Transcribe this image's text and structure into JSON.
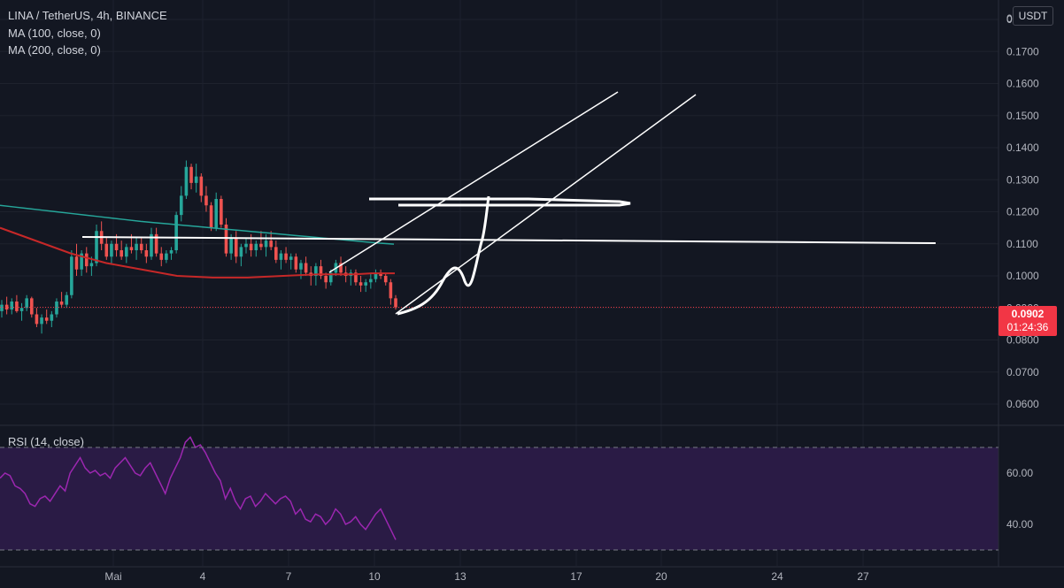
{
  "header": {
    "symbol_line": "LINA / TetherUS, 4h, BINANCE",
    "ma1_label": "MA (100, close, 0)",
    "ma2_label": "MA (200, close, 0)",
    "currency_button": "USDT"
  },
  "rsi": {
    "label": "RSI (14, close)"
  },
  "price_badge": {
    "price": "0.0902",
    "countdown": "01:24:36"
  },
  "colors": {
    "background": "#131722",
    "up": "#26a69a",
    "down": "#ef5350",
    "ma100": "#c62828",
    "ma200": "#26a69a",
    "rsi_line": "#9c27b0",
    "rsi_band": "#2a1b45",
    "drawing": "#ffffff",
    "badge": "#f23645"
  },
  "chart_data": [
    {
      "type": "candlestick",
      "title": "LINA / TetherUS, 4h, BINANCE",
      "ylim": [
        0.053,
        0.2
      ],
      "y_ticks": [
        "0.0600",
        "0.0700",
        "0.0800",
        "0.0900",
        "0.1000",
        "0.1100",
        "0.1200",
        "0.1300",
        "0.1400",
        "0.1500",
        "0.1600",
        "0.1700",
        "0.1800"
      ],
      "x_ticks": [
        "Mai",
        "4",
        "7",
        "10",
        "13",
        "17",
        "20",
        "24",
        "27"
      ],
      "last_price": 0.0902,
      "ohlc": [
        [
          0.089,
          0.0925,
          0.087,
          0.091
        ],
        [
          0.091,
          0.0935,
          0.088,
          0.0895
        ],
        [
          0.0895,
          0.093,
          0.088,
          0.092
        ],
        [
          0.092,
          0.094,
          0.0885,
          0.089
        ],
        [
          0.089,
          0.0915,
          0.086,
          0.09
        ],
        [
          0.09,
          0.094,
          0.089,
          0.093
        ],
        [
          0.093,
          0.0935,
          0.087,
          0.088
        ],
        [
          0.088,
          0.09,
          0.084,
          0.085
        ],
        [
          0.085,
          0.088,
          0.082,
          0.087
        ],
        [
          0.087,
          0.0895,
          0.085,
          0.086
        ],
        [
          0.086,
          0.089,
          0.084,
          0.088
        ],
        [
          0.088,
          0.093,
          0.087,
          0.092
        ],
        [
          0.092,
          0.095,
          0.09,
          0.091
        ],
        [
          0.091,
          0.095,
          0.09,
          0.094
        ],
        [
          0.094,
          0.108,
          0.093,
          0.106
        ],
        [
          0.106,
          0.11,
          0.1,
          0.102
        ],
        [
          0.102,
          0.108,
          0.1,
          0.107
        ],
        [
          0.107,
          0.109,
          0.101,
          0.103
        ],
        [
          0.103,
          0.106,
          0.1,
          0.104
        ],
        [
          0.104,
          0.116,
          0.103,
          0.114
        ],
        [
          0.114,
          0.117,
          0.108,
          0.11
        ],
        [
          0.11,
          0.112,
          0.105,
          0.106
        ],
        [
          0.106,
          0.111,
          0.104,
          0.11
        ],
        [
          0.11,
          0.113,
          0.106,
          0.108
        ],
        [
          0.108,
          0.111,
          0.105,
          0.106
        ],
        [
          0.106,
          0.11,
          0.104,
          0.109
        ],
        [
          0.109,
          0.113,
          0.107,
          0.108
        ],
        [
          0.108,
          0.112,
          0.105,
          0.11
        ],
        [
          0.11,
          0.112,
          0.107,
          0.108
        ],
        [
          0.108,
          0.11,
          0.104,
          0.106
        ],
        [
          0.106,
          0.115,
          0.105,
          0.113
        ],
        [
          0.113,
          0.115,
          0.106,
          0.107
        ],
        [
          0.107,
          0.109,
          0.103,
          0.105
        ],
        [
          0.105,
          0.108,
          0.104,
          0.107
        ],
        [
          0.107,
          0.109,
          0.105,
          0.108
        ],
        [
          0.108,
          0.12,
          0.107,
          0.119
        ],
        [
          0.119,
          0.128,
          0.117,
          0.125
        ],
        [
          0.125,
          0.136,
          0.124,
          0.134
        ],
        [
          0.134,
          0.135,
          0.127,
          0.129
        ],
        [
          0.129,
          0.135,
          0.126,
          0.131
        ],
        [
          0.131,
          0.132,
          0.123,
          0.125
        ],
        [
          0.125,
          0.128,
          0.12,
          0.122
        ],
        [
          0.122,
          0.123,
          0.114,
          0.115
        ],
        [
          0.115,
          0.126,
          0.114,
          0.124
        ],
        [
          0.124,
          0.125,
          0.115,
          0.116
        ],
        [
          0.116,
          0.118,
          0.106,
          0.107
        ],
        [
          0.107,
          0.113,
          0.105,
          0.112
        ],
        [
          0.112,
          0.114,
          0.104,
          0.106
        ],
        [
          0.106,
          0.11,
          0.103,
          0.109
        ],
        [
          0.109,
          0.112,
          0.107,
          0.11
        ],
        [
          0.11,
          0.113,
          0.106,
          0.108
        ],
        [
          0.108,
          0.111,
          0.106,
          0.11
        ],
        [
          0.11,
          0.114,
          0.108,
          0.109
        ],
        [
          0.109,
          0.113,
          0.106,
          0.111
        ],
        [
          0.111,
          0.114,
          0.108,
          0.109
        ],
        [
          0.109,
          0.111,
          0.104,
          0.105
        ],
        [
          0.105,
          0.108,
          0.102,
          0.107
        ],
        [
          0.107,
          0.109,
          0.104,
          0.105
        ],
        [
          0.105,
          0.107,
          0.102,
          0.106
        ],
        [
          0.106,
          0.107,
          0.101,
          0.102
        ],
        [
          0.102,
          0.105,
          0.099,
          0.104
        ],
        [
          0.104,
          0.106,
          0.1,
          0.101
        ],
        [
          0.101,
          0.103,
          0.097,
          0.1
        ],
        [
          0.1,
          0.104,
          0.097,
          0.103
        ],
        [
          0.103,
          0.105,
          0.099,
          0.1
        ],
        [
          0.1,
          0.101,
          0.096,
          0.098
        ],
        [
          0.098,
          0.102,
          0.097,
          0.101
        ],
        [
          0.101,
          0.105,
          0.1,
          0.104
        ],
        [
          0.104,
          0.106,
          0.1,
          0.101
        ],
        [
          0.101,
          0.103,
          0.098,
          0.1
        ],
        [
          0.1,
          0.102,
          0.097,
          0.101
        ],
        [
          0.101,
          0.102,
          0.097,
          0.098
        ],
        [
          0.098,
          0.1,
          0.095,
          0.097
        ],
        [
          0.097,
          0.099,
          0.095,
          0.098
        ],
        [
          0.098,
          0.101,
          0.096,
          0.099
        ],
        [
          0.099,
          0.102,
          0.098,
          0.101
        ],
        [
          0.101,
          0.102,
          0.099,
          0.1
        ],
        [
          0.1,
          0.101,
          0.097,
          0.098
        ],
        [
          0.098,
          0.099,
          0.091,
          0.093
        ],
        [
          0.093,
          0.094,
          0.0895,
          0.0902
        ]
      ],
      "ma100": [
        0.099,
        0.0985,
        0.0978,
        0.097,
        0.0962,
        0.0955,
        0.0948,
        0.094,
        0.0933,
        0.0925,
        0.0918,
        0.091,
        0.0903,
        0.0897,
        0.089,
        0.0885,
        0.088,
        0.0875,
        0.087,
        0.0865
      ],
      "ma200": [
        0.122,
        0.1215,
        0.121,
        0.1205,
        0.12,
        0.1195,
        0.119,
        0.1185,
        0.118,
        0.1175,
        0.117,
        0.1166,
        0.1162,
        0.1158,
        0.1154,
        0.115,
        0.1146,
        0.1142,
        0.1138,
        0.1134,
        0.113,
        0.1126,
        0.1122,
        0.1118,
        0.1114,
        0.111,
        0.1106,
        0.1102,
        0.1099
      ]
    },
    {
      "type": "line",
      "title": "RSI (14, close)",
      "ylim": [
        20,
        80
      ],
      "y_ticks": [
        "40.00",
        "60.00"
      ],
      "bands": [
        30,
        70
      ],
      "values": [
        58,
        60,
        59,
        55,
        54,
        52,
        48,
        47,
        50,
        51,
        49,
        52,
        55,
        53,
        60,
        63,
        66,
        62,
        60,
        61,
        59,
        60,
        58,
        62,
        64,
        66,
        63,
        60,
        59,
        62,
        64,
        60,
        56,
        52,
        58,
        62,
        66,
        72,
        74,
        70,
        71,
        68,
        64,
        60,
        57,
        50,
        54,
        49,
        46,
        50,
        51,
        47,
        49,
        52,
        50,
        48,
        50,
        51,
        49,
        44,
        46,
        42,
        41,
        44,
        43,
        40,
        42,
        46,
        44,
        40,
        41,
        43,
        40,
        38,
        41,
        44,
        46,
        42,
        38,
        34
      ]
    }
  ]
}
